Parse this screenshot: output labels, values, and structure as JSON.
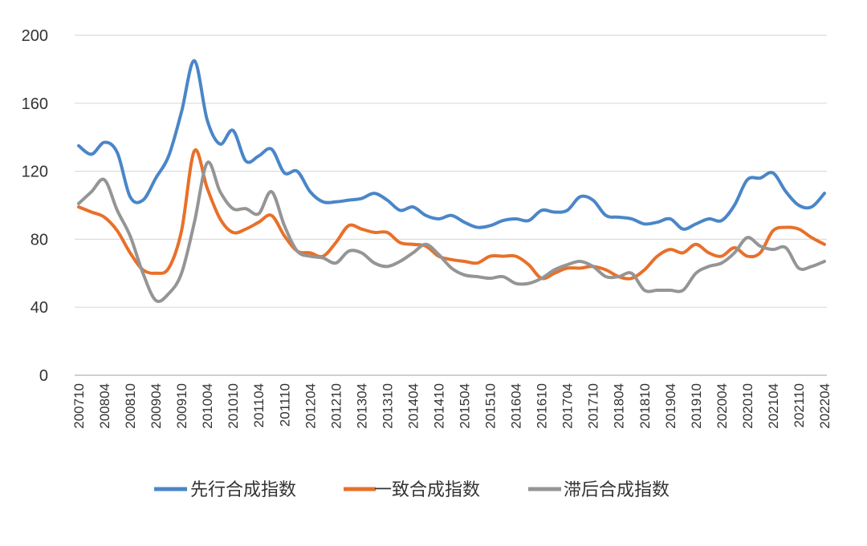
{
  "chart_data": {
    "type": "line",
    "title": "",
    "xlabel": "",
    "ylabel": "",
    "ylim": [
      0,
      200
    ],
    "yticks": [
      0,
      40,
      80,
      120,
      160,
      200
    ],
    "grid": true,
    "legend_position": "bottom",
    "xticks": [
      "200710",
      "200804",
      "200810",
      "200904",
      "200910",
      "201004",
      "201010",
      "201104",
      "201110",
      "201204",
      "201210",
      "201304",
      "201310",
      "201404",
      "201410",
      "201504",
      "201510",
      "201604",
      "201610",
      "201704",
      "201710",
      "201804",
      "201810",
      "201904",
      "201910",
      "202004",
      "202010",
      "202104",
      "202110",
      "202204"
    ],
    "x": [
      "200710",
      "200801",
      "200804",
      "200807",
      "200810",
      "200901",
      "200904",
      "200907",
      "200910",
      "201001",
      "201004",
      "201007",
      "201010",
      "201101",
      "201104",
      "201107",
      "201110",
      "201201",
      "201204",
      "201207",
      "201210",
      "201301",
      "201304",
      "201307",
      "201310",
      "201401",
      "201404",
      "201407",
      "201410",
      "201501",
      "201504",
      "201507",
      "201510",
      "201601",
      "201604",
      "201607",
      "201610",
      "201701",
      "201704",
      "201707",
      "201710",
      "201801",
      "201804",
      "201807",
      "201810",
      "201901",
      "201904",
      "201907",
      "201910",
      "202001",
      "202004",
      "202007",
      "202010",
      "202101",
      "202104",
      "202107",
      "202110",
      "202201",
      "202204"
    ],
    "series": [
      {
        "name": "先行合成指数",
        "color": "#4a86c8",
        "values": [
          135,
          130,
          137,
          131,
          105,
          103,
          116,
          129,
          155,
          185,
          150,
          136,
          144,
          126,
          129,
          133,
          119,
          120,
          108,
          102,
          102,
          103,
          104,
          107,
          103,
          97,
          99,
          94,
          92,
          94,
          90,
          87,
          88,
          91,
          92,
          91,
          97,
          96,
          97,
          105,
          103,
          94,
          93,
          92,
          89,
          90,
          92,
          86,
          89,
          92,
          91,
          100,
          115,
          116,
          119,
          108,
          100,
          99,
          107
        ]
      },
      {
        "name": "一致合成指数",
        "color": "#e8702a",
        "values": [
          99,
          96,
          93,
          85,
          72,
          62,
          60,
          63,
          85,
          132,
          110,
          92,
          84,
          86,
          90,
          94,
          82,
          73,
          72,
          70,
          78,
          88,
          86,
          84,
          84,
          78,
          77,
          76,
          70,
          68,
          67,
          66,
          70,
          70,
          70,
          65,
          57,
          60,
          63,
          63,
          64,
          62,
          58,
          57,
          62,
          70,
          74,
          72,
          77,
          72,
          70,
          75,
          70,
          72,
          85,
          87,
          86,
          81,
          77
        ]
      },
      {
        "name": "滞后合成指数",
        "color": "#959595",
        "values": [
          101,
          108,
          115,
          97,
          82,
          60,
          44,
          48,
          60,
          90,
          125,
          108,
          98,
          98,
          95,
          108,
          88,
          73,
          70,
          69,
          66,
          73,
          72,
          66,
          64,
          67,
          72,
          77,
          71,
          63,
          59,
          58,
          57,
          58,
          54,
          54,
          57,
          62,
          65,
          67,
          64,
          58,
          58,
          60,
          50,
          50,
          50,
          50,
          60,
          64,
          66,
          72,
          81,
          76,
          74,
          75,
          63,
          64,
          67
        ]
      }
    ]
  }
}
